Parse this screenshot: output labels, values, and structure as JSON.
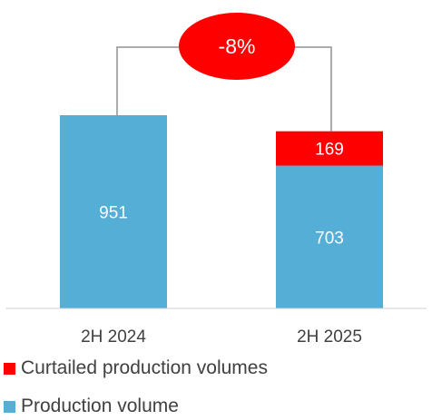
{
  "chart_data": {
    "type": "bar",
    "stacked": true,
    "categories": [
      "2H 2024",
      "2H 2025"
    ],
    "series": [
      {
        "name": "Production volume",
        "values": [
          951,
          703
        ],
        "color": "#54AED6"
      },
      {
        "name": "Curtailed production volumes",
        "values": [
          null,
          169
        ],
        "color": "#FF0000"
      }
    ],
    "annotation": {
      "label": "-8%",
      "color": "#FF0000"
    },
    "legend_position": "bottom-left",
    "grid": false
  }
}
